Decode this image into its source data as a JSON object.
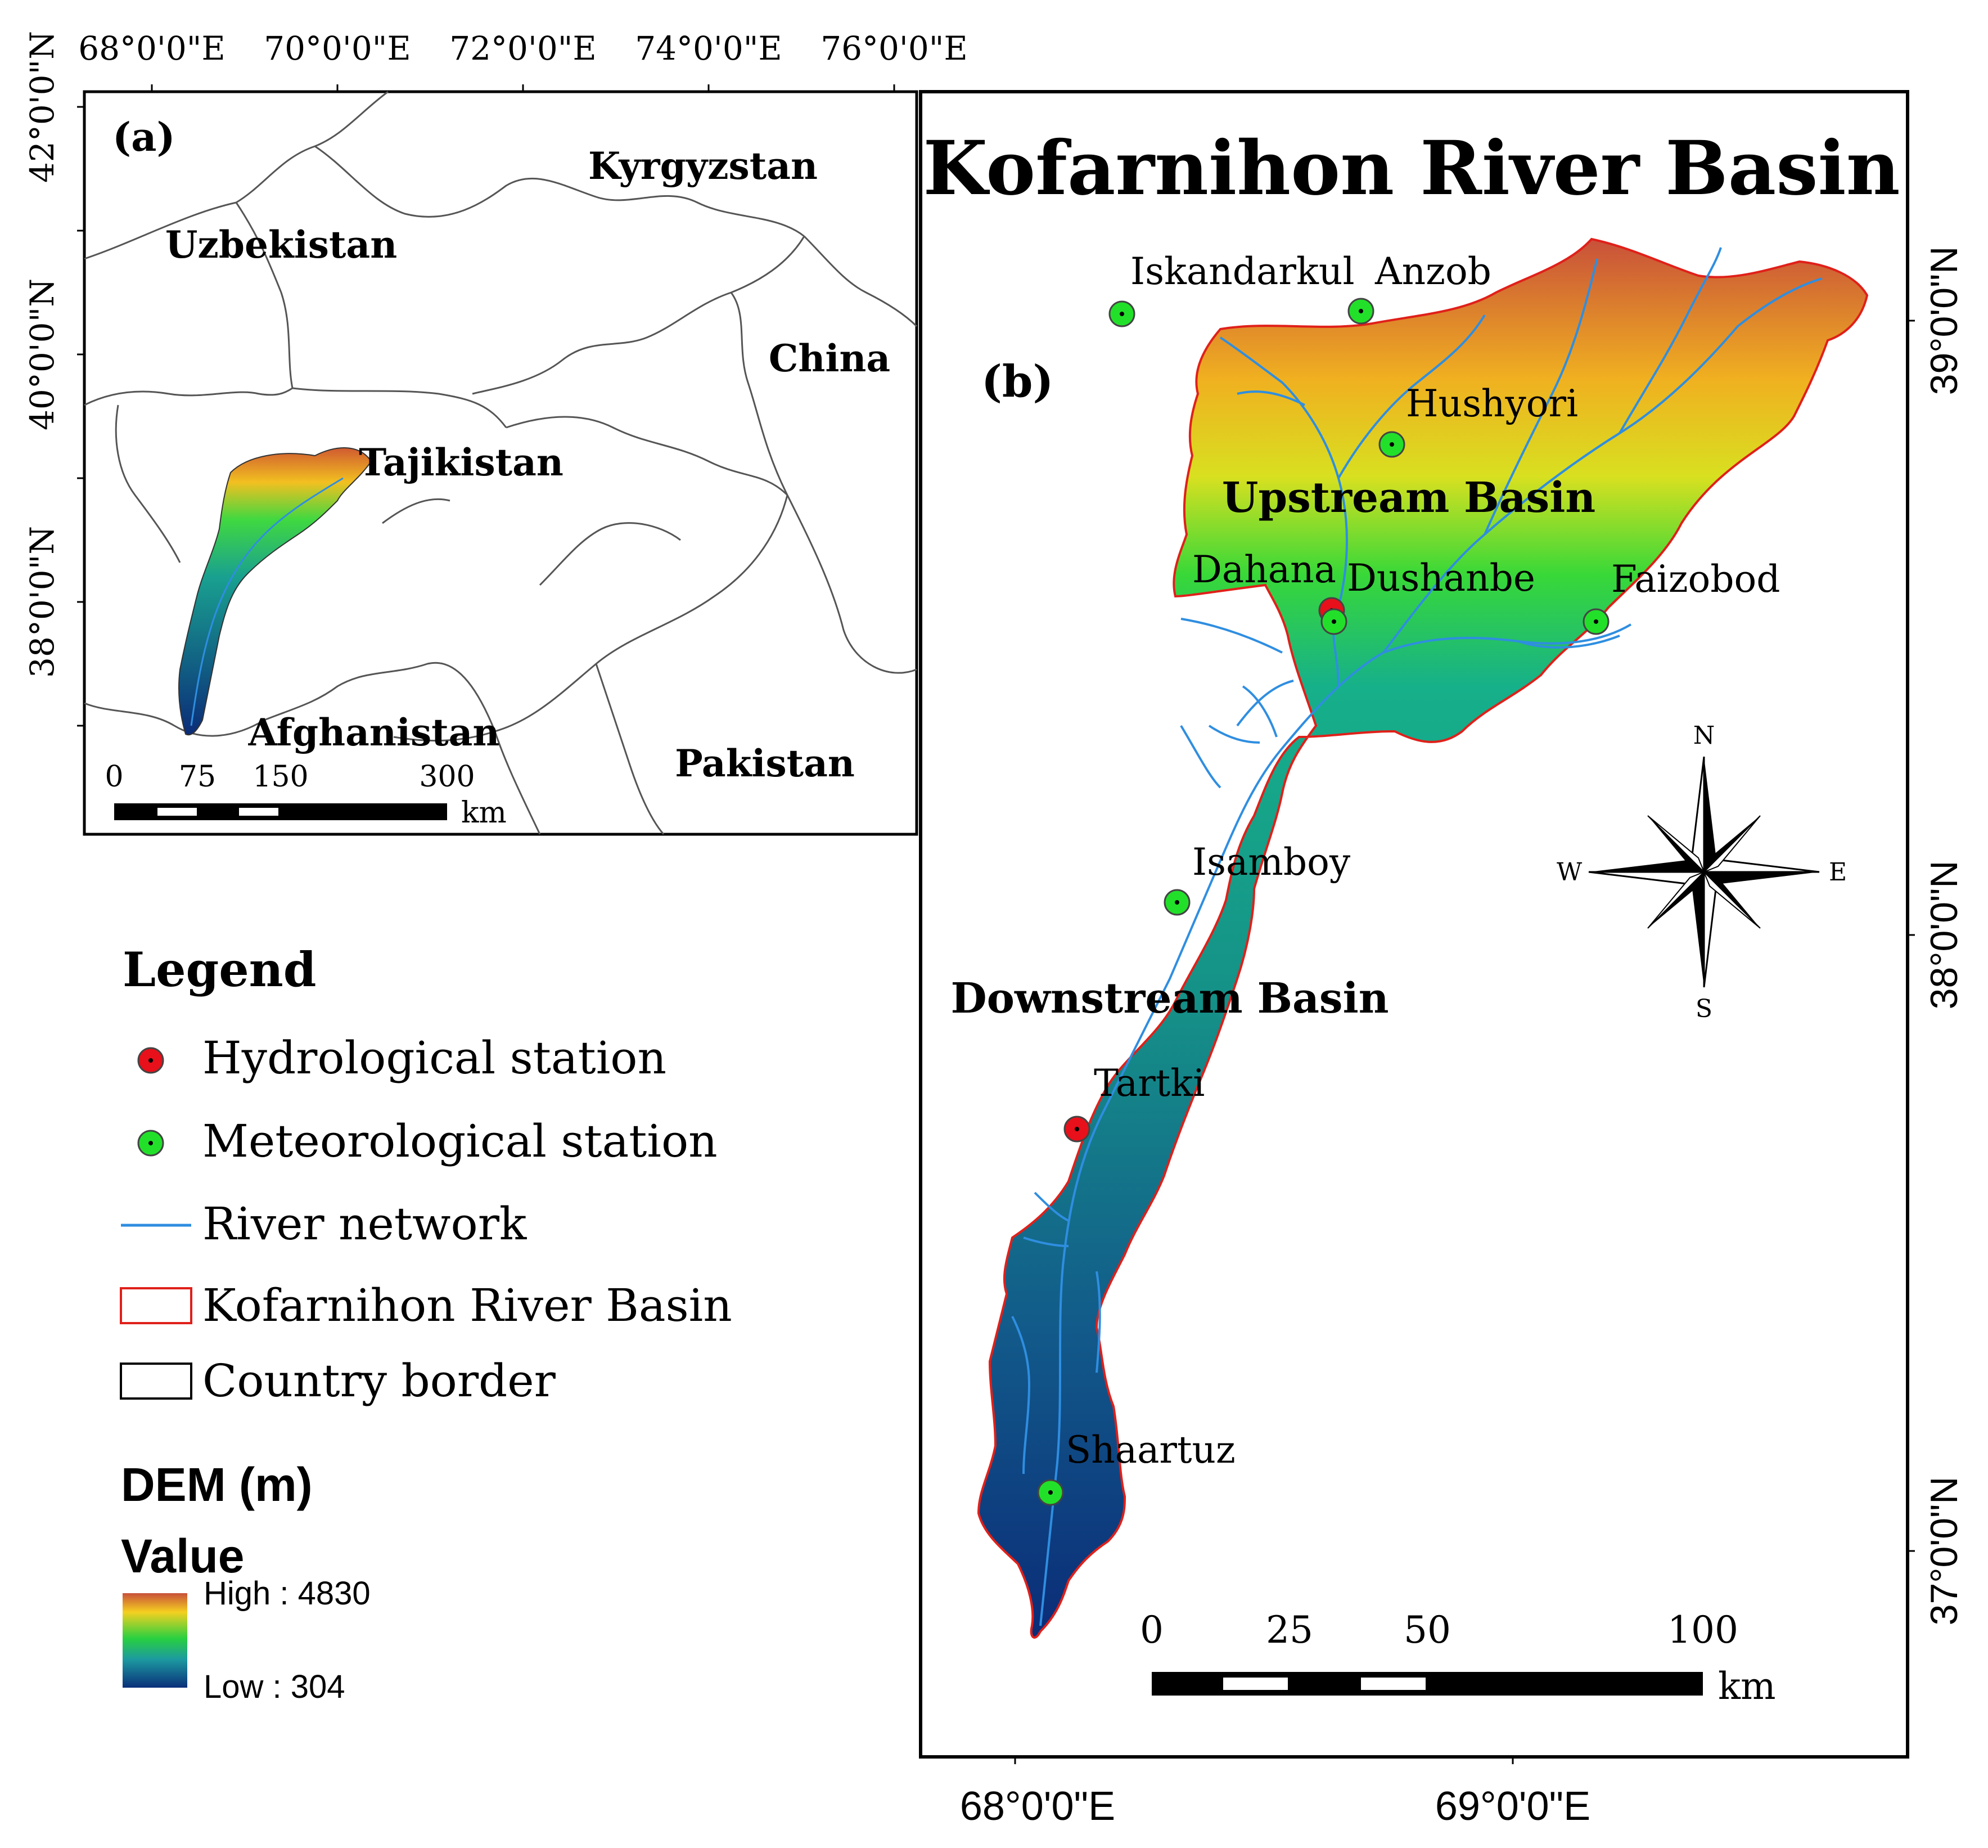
{
  "overview_map": {
    "panel_label": "(a)",
    "top_ticks": [
      "68°0'0\"E",
      "70°0'0\"E",
      "72°0'0\"E",
      "74°0'0\"E",
      "76°0'0\"E"
    ],
    "left_ticks": [
      "42°0'0\"N",
      "40°0'0\"N",
      "38°0'0\"N"
    ],
    "countries": [
      "Kyrgyzstan",
      "Uzbekistan",
      "China",
      "Tajikistan",
      "Afghanistan",
      "Pakistan"
    ],
    "scale_labels": [
      "0",
      "75",
      "150",
      "300"
    ],
    "scale_unit": "km"
  },
  "basin_map": {
    "title": "Kofarnihon River Basin",
    "panel_label": "(b)",
    "right_ticks": [
      "39°0'0\"N",
      "38°0'0\"N",
      "37°0'0\"N"
    ],
    "bottom_ticks": [
      "68°0'0\"E",
      "69°0'0\"E"
    ],
    "regions": [
      "Upstream Basin",
      "Downstream Basin"
    ],
    "stations": [
      {
        "name": "Iskandarkul",
        "type": "meteorological"
      },
      {
        "name": "Anzob",
        "type": "meteorological"
      },
      {
        "name": "Hushyori",
        "type": "meteorological"
      },
      {
        "name": "Dahana",
        "type": "hydrological"
      },
      {
        "name": "Dushanbe",
        "type": "meteorological"
      },
      {
        "name": "Faizobod",
        "type": "meteorological"
      },
      {
        "name": "Isamboy",
        "type": "meteorological"
      },
      {
        "name": "Tartki",
        "type": "hydrological"
      },
      {
        "name": "Shaartuz",
        "type": "meteorological"
      }
    ],
    "north_arrow": {
      "n": "N",
      "s": "S",
      "e": "E",
      "w": "W"
    },
    "scale_labels": [
      "0",
      "25",
      "50",
      "100"
    ],
    "scale_unit": "km"
  },
  "legend": {
    "title": "Legend",
    "items": {
      "hydro": "Hydrological station",
      "meteo": "Meteorological station",
      "river": "River network",
      "basin": "Kofarnihon River Basin",
      "border": "Country border"
    },
    "dem_title": "DEM (m)",
    "value_label": "Value",
    "high": "High : 4830",
    "low": "Low : 304"
  },
  "colors": {
    "hydrological": "#e8101a",
    "meteorological": "#22e02a",
    "river": "#2f8ee0",
    "basin_outline": "#e0201a",
    "border": "#000000"
  }
}
